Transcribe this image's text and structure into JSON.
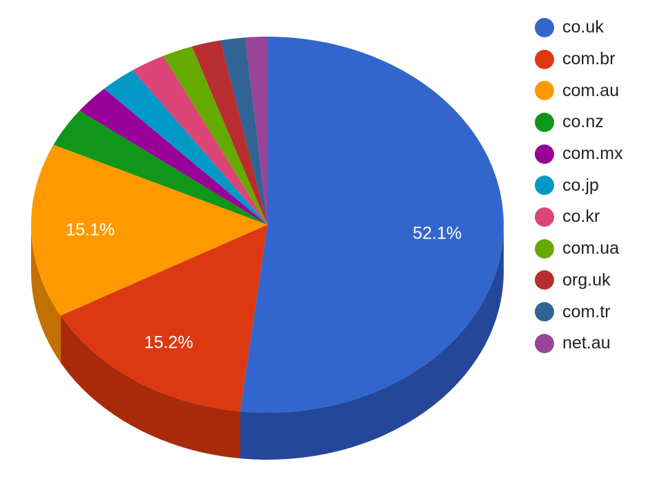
{
  "chart_data": {
    "type": "pie",
    "title": "",
    "is_3d": true,
    "legend_position": "right",
    "start_angle_deg": 0,
    "direction": "clockwise",
    "slices": [
      {
        "label": "co.uk",
        "value": 52.1,
        "color": "#3366cc",
        "side_color": "#24479a",
        "display_label": "52.1%"
      },
      {
        "label": "com.br",
        "value": 15.2,
        "color": "#dc3912",
        "side_color": "#a82a0b",
        "display_label": "15.2%"
      },
      {
        "label": "com.au",
        "value": 15.1,
        "color": "#ff9900",
        "side_color": "#c27000",
        "display_label": "15.1%"
      },
      {
        "label": "co.nz",
        "value": 3.4,
        "color": "#109618",
        "side_color": "#0b6e11"
      },
      {
        "label": "com.mx",
        "value": 2.5,
        "color": "#990099",
        "side_color": "#700070"
      },
      {
        "label": "co.jp",
        "value": 2.5,
        "color": "#0099c6",
        "side_color": "#007395"
      },
      {
        "label": "co.kr",
        "value": 2.4,
        "color": "#dd4477",
        "side_color": "#a83259"
      },
      {
        "label": "com.ua",
        "value": 2.1,
        "color": "#66aa00",
        "side_color": "#4c8000"
      },
      {
        "label": "org.uk",
        "value": 2.0,
        "color": "#b82e2e",
        "side_color": "#8a2222"
      },
      {
        "label": "com.tr",
        "value": 1.7,
        "color": "#316395",
        "side_color": "#244a70"
      },
      {
        "label": "net.au",
        "value": 1.5,
        "color": "#994499",
        "side_color": "#733373"
      }
    ]
  }
}
